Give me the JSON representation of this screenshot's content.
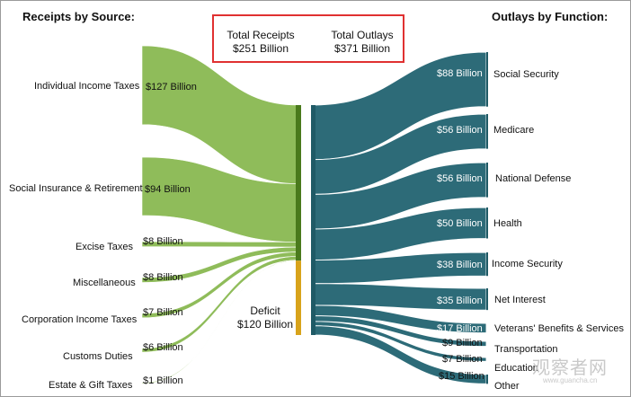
{
  "headers": {
    "receipts": "Receipts by Source:",
    "outlays": "Outlays by Function:"
  },
  "totals": {
    "receipts_label": "Total Receipts",
    "receipts_value": "$251 Billion",
    "outlays_label": "Total Outlays",
    "outlays_value": "$371 Billion"
  },
  "deficit": {
    "label": "Deficit",
    "value": "$120 Billion",
    "billions": 120
  },
  "receipts": [
    {
      "label": "Individual Income Taxes",
      "value": "$127 Billion",
      "billions": 127
    },
    {
      "label": "Social Insurance & Retirement",
      "value": "$94 Billion",
      "billions": 94
    },
    {
      "label": "Excise Taxes",
      "value": "$8 Billion",
      "billions": 8
    },
    {
      "label": "Miscellaneous",
      "value": "$8 Billion",
      "billions": 8
    },
    {
      "label": "Corporation Income Taxes",
      "value": "$7 Billion",
      "billions": 7
    },
    {
      "label": "Customs Duties",
      "value": "$6 Billion",
      "billions": 6
    },
    {
      "label": "Estate & Gift Taxes",
      "value": "$1 Billion",
      "billions": 1
    }
  ],
  "outlays": [
    {
      "label": "Social Security",
      "value": "$88 Billion",
      "billions": 88
    },
    {
      "label": "Medicare",
      "value": "$56 Billion",
      "billions": 56
    },
    {
      "label": "National Defense",
      "value": "$56 Billion",
      "billions": 56
    },
    {
      "label": "Health",
      "value": "$50 Billion",
      "billions": 50
    },
    {
      "label": "Income Security",
      "value": "$38 Billion",
      "billions": 38
    },
    {
      "label": "Net Interest",
      "value": "$35 Billion",
      "billions": 35
    },
    {
      "label": "Veterans' Benefits & Services",
      "value": "$17 Billion",
      "billions": 17
    },
    {
      "label": "Transportation",
      "value": "$9 Billion",
      "billions": 9
    },
    {
      "label": "Education",
      "value": "$7 Billion",
      "billions": 7
    },
    {
      "label": "Other",
      "value": "$15 Billion",
      "billions": 15
    }
  ],
  "colors": {
    "receipt_flow": "#8fbc5a",
    "receipt_bar": "#4a7a1c",
    "deficit_bar": "#d8a31b",
    "outlay_flow": "#2d6b78",
    "outlay_bar": "#1f5a66",
    "totals_border": "#e03131"
  },
  "watermark": {
    "main": "观察者网",
    "sub": "www.guancha.cn"
  }
}
